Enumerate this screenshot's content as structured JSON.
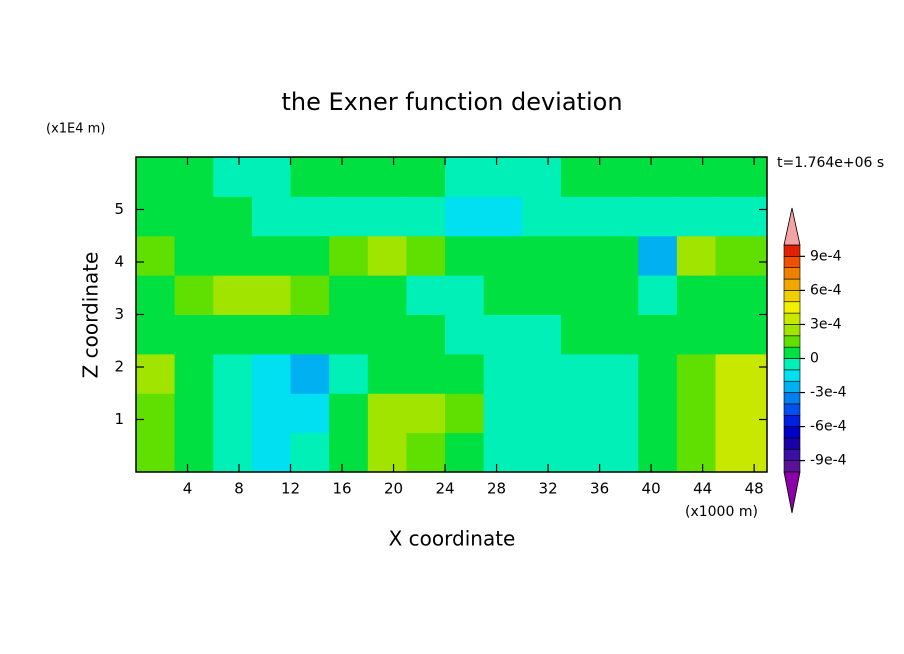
{
  "chart_data": {
    "type": "contour",
    "title": "the Exner function deviation",
    "x_label": "X coordinate",
    "y_label": "Z coordinate",
    "x_unit": "(x1000 m)",
    "y_unit": "(x1E4 m)",
    "annotation": "t=1.764e+06 s",
    "xlim": [
      0,
      49
    ],
    "ylim": [
      0,
      6
    ],
    "xticks": [
      4,
      8,
      12,
      16,
      20,
      24,
      28,
      32,
      36,
      40,
      44,
      48
    ],
    "yticks": [
      1,
      2,
      3,
      4,
      5
    ],
    "x": [
      1.5,
      4.5,
      7.5,
      10.5,
      13.5,
      16.5,
      19.5,
      22.5,
      25.5,
      28.5,
      31.5,
      34.5,
      37.5,
      40.5,
      43.5,
      46.5
    ],
    "y": [
      0.375,
      1.125,
      1.875,
      2.625,
      3.375,
      4.125,
      4.875,
      5.625
    ],
    "z": [
      [
        0.00015,
        5e-05,
        -5e-05,
        -0.00015,
        -5e-05,
        5e-05,
        0.00025,
        0.00015,
        5e-05,
        -5e-05,
        -5e-05,
        -5e-05,
        -5e-05,
        5e-05,
        0.00015,
        0.00035
      ],
      [
        0.00015,
        5e-05,
        -5e-05,
        -0.00015,
        -0.00015,
        5e-05,
        0.00025,
        0.00025,
        0.00015,
        -5e-05,
        -5e-05,
        -5e-05,
        -5e-05,
        5e-05,
        0.00015,
        0.00035
      ],
      [
        0.00025,
        5e-05,
        -5e-05,
        -0.00015,
        -0.00025,
        -5e-05,
        5e-05,
        5e-05,
        5e-05,
        -5e-05,
        -5e-05,
        -5e-05,
        -5e-05,
        5e-05,
        0.00015,
        0.00035
      ],
      [
        5e-05,
        5e-05,
        5e-05,
        5e-05,
        5e-05,
        5e-05,
        5e-05,
        5e-05,
        -5e-05,
        -5e-05,
        -5e-05,
        5e-05,
        5e-05,
        5e-05,
        5e-05,
        5e-05
      ],
      [
        5e-05,
        0.00015,
        0.00025,
        0.00025,
        0.00015,
        5e-05,
        5e-05,
        -5e-05,
        -5e-05,
        5e-05,
        5e-05,
        5e-05,
        5e-05,
        -5e-05,
        5e-05,
        5e-05
      ],
      [
        0.00015,
        5e-05,
        5e-05,
        5e-05,
        5e-05,
        0.00015,
        0.00025,
        0.00015,
        5e-05,
        5e-05,
        5e-05,
        5e-05,
        5e-05,
        -0.00025,
        0.00025,
        0.00015
      ],
      [
        5e-05,
        5e-05,
        5e-05,
        -5e-05,
        -5e-05,
        -5e-05,
        -5e-05,
        -5e-05,
        -0.00015,
        -0.00015,
        -5e-05,
        -5e-05,
        -5e-05,
        -5e-05,
        -5e-05,
        -5e-05
      ],
      [
        5e-05,
        5e-05,
        -5e-05,
        -5e-05,
        5e-05,
        5e-05,
        5e-05,
        5e-05,
        -5e-05,
        -5e-05,
        -5e-05,
        5e-05,
        5e-05,
        5e-05,
        5e-05,
        5e-05
      ]
    ],
    "levels": [
      -0.001,
      -0.0009,
      -0.0008,
      -0.0007,
      -0.0006,
      -0.0005,
      -0.0004,
      -0.0003,
      -0.0002,
      -0.0001,
      0,
      0.0001,
      0.0002,
      0.0003,
      0.0004,
      0.0005,
      0.0006,
      0.0007,
      0.0008,
      0.0009,
      0.001
    ],
    "colors": [
      "#5c1098",
      "#3a10a0",
      "#1a00a8",
      "#0000c8",
      "#0020e0",
      "#0050f0",
      "#0080f0",
      "#00b0f0",
      "#00e0f0",
      "#00f0b8",
      "#00e040",
      "#60e000",
      "#a0e400",
      "#c8e800",
      "#f0f000",
      "#f0d000",
      "#f0a800",
      "#f08000",
      "#f05000",
      "#e02000"
    ],
    "under_color": "#8c00a8",
    "over_color": "#f4a4a4",
    "colorbar_ticks": [
      {
        "value": 0.0009,
        "label": "9e-4"
      },
      {
        "value": 0.0006,
        "label": "6e-4"
      },
      {
        "value": 0.0003,
        "label": "3e-4"
      },
      0,
      {
        "value": -0.0003,
        "label": "-3e-4"
      },
      {
        "value": -0.0006,
        "label": "-6e-4"
      },
      {
        "value": -0.0009,
        "label": "-9e-4"
      }
    ]
  }
}
